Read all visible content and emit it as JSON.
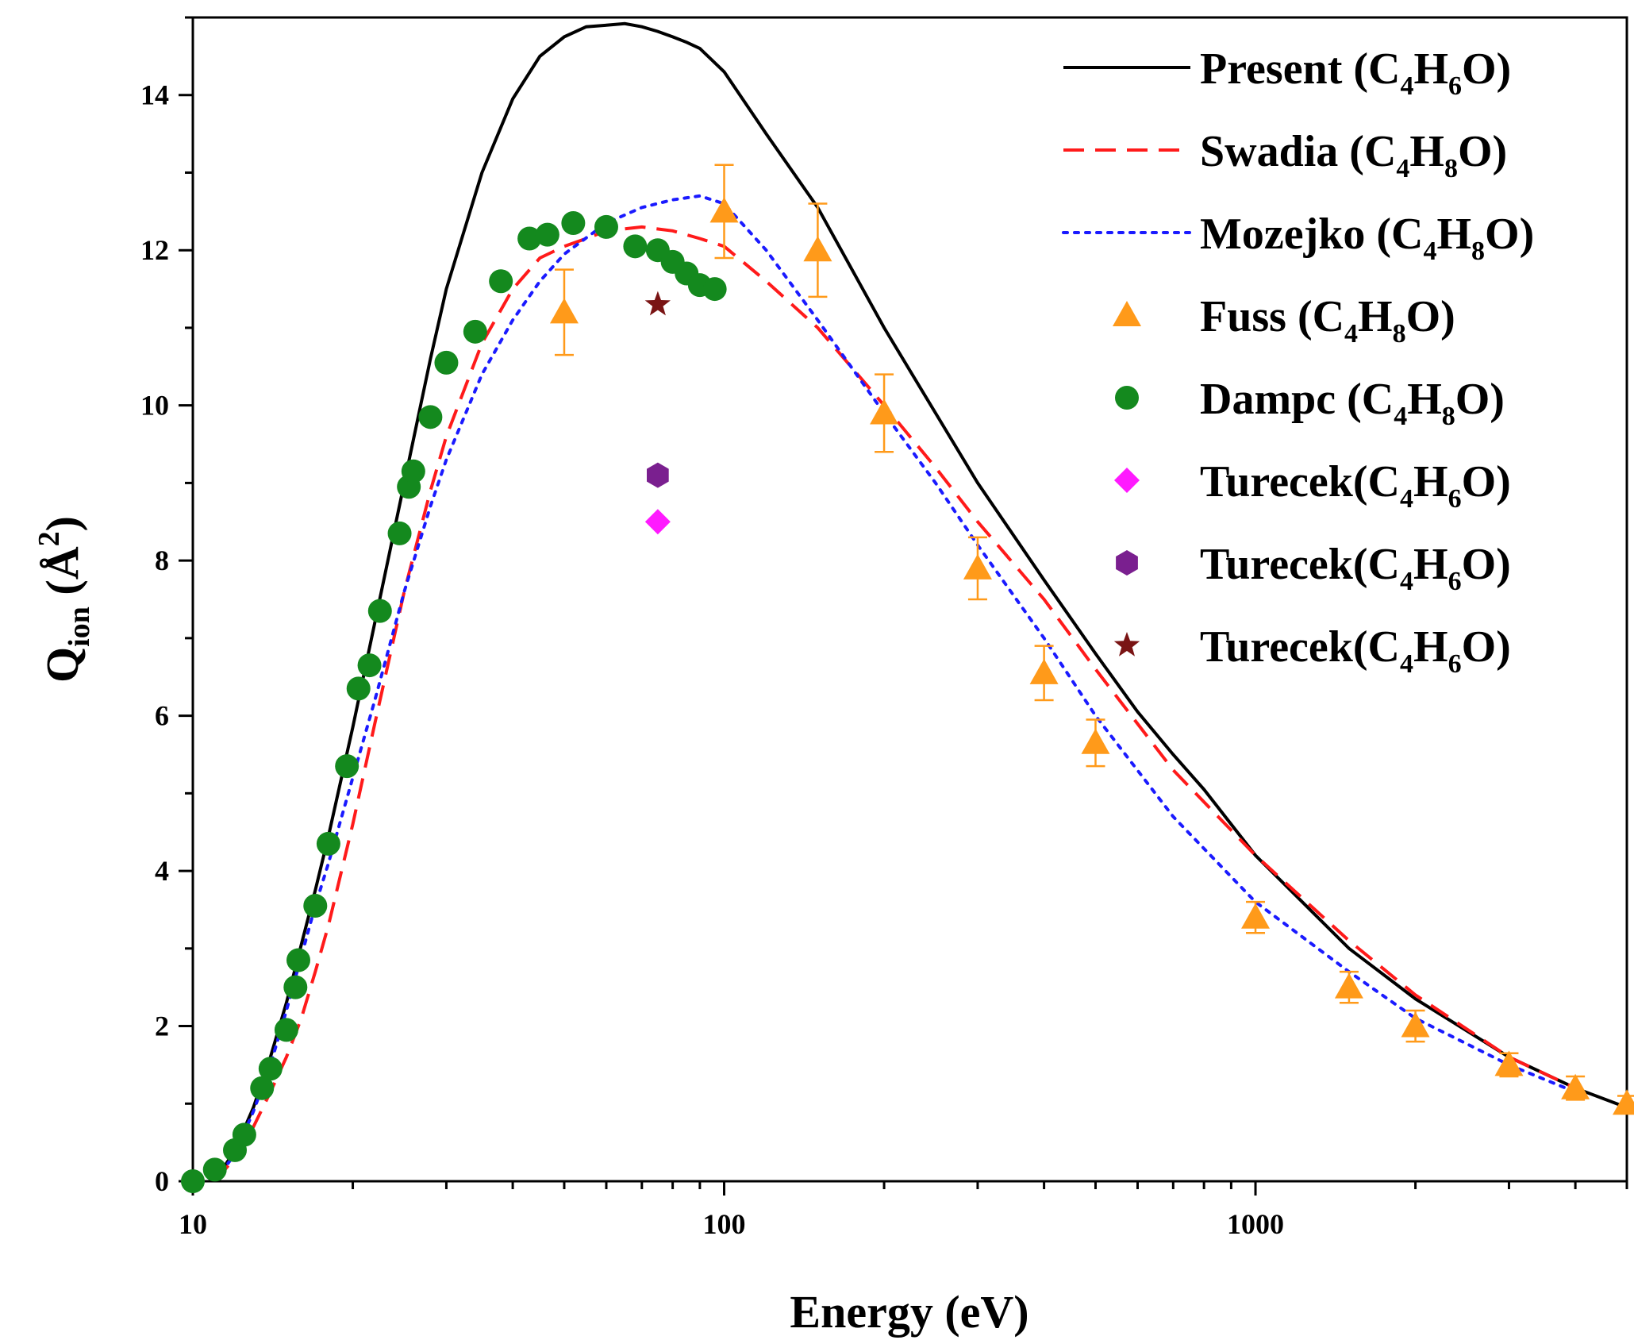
{
  "chart_data": {
    "type": "line",
    "title": "",
    "xlabel": "Energy (eV)",
    "ylabel": {
      "main": "Q",
      "sub": "ion",
      "open": " (",
      "unit": "Å",
      "sup": "2",
      "close": ")"
    },
    "xscale": "log",
    "xlim": [
      10,
      5000
    ],
    "ylim": [
      0,
      15
    ],
    "xticks": [
      {
        "value": 10,
        "label": "10"
      },
      {
        "value": 100,
        "label": "100"
      },
      {
        "value": 1000,
        "label": "1000"
      }
    ],
    "yticks": [
      {
        "value": 0,
        "label": "0"
      },
      {
        "value": 2,
        "label": "2"
      },
      {
        "value": 4,
        "label": "4"
      },
      {
        "value": 6,
        "label": "6"
      },
      {
        "value": 8,
        "label": "8"
      },
      {
        "value": 10,
        "label": "10"
      },
      {
        "value": 12,
        "label": "12"
      },
      {
        "value": 14,
        "label": "14"
      }
    ],
    "legend_position": "top-right",
    "series": [
      {
        "name": "Present",
        "legend": {
          "text": "Present (C",
          "sub1": "4",
          "mid": "H",
          "sub2": "6",
          "end": "O)"
        },
        "kind": "line",
        "style": "solid",
        "color": "#000000",
        "x": [
          11,
          12,
          13,
          14,
          15,
          16,
          17,
          18,
          20,
          22,
          25,
          28,
          30,
          35,
          40,
          45,
          50,
          55,
          60,
          65,
          70,
          75,
          80,
          85,
          90,
          100,
          120,
          150,
          200,
          250,
          300,
          400,
          500,
          600,
          700,
          800,
          1000,
          1500,
          2000,
          3000,
          4000,
          5000
        ],
        "y": [
          0,
          0.4,
          0.95,
          1.6,
          2.3,
          3.05,
          3.75,
          4.45,
          5.85,
          7.2,
          9.0,
          10.6,
          11.5,
          13.0,
          13.95,
          14.5,
          14.75,
          14.88,
          14.9,
          14.92,
          14.88,
          14.82,
          14.75,
          14.68,
          14.6,
          14.3,
          13.5,
          12.55,
          11.0,
          9.9,
          9.0,
          7.75,
          6.8,
          6.05,
          5.5,
          5.05,
          4.2,
          3.0,
          2.35,
          1.6,
          1.2,
          0.95
        ]
      },
      {
        "name": "Swadia",
        "legend": {
          "text": "Swadia (C",
          "sub1": "4",
          "mid": "H",
          "sub2": "8",
          "end": "O)"
        },
        "kind": "line",
        "style": "dashed",
        "color": "#ff1a1a",
        "x": [
          11,
          12,
          13,
          14,
          15,
          16,
          17,
          18,
          20,
          22,
          25,
          28,
          30,
          35,
          40,
          45,
          50,
          55,
          60,
          70,
          80,
          90,
          100,
          120,
          150,
          200,
          250,
          300,
          400,
          500,
          700,
          1000,
          1500,
          2000,
          3000,
          4000
        ],
        "y": [
          0,
          0.3,
          0.7,
          1.15,
          1.6,
          2.1,
          2.7,
          3.3,
          4.6,
          5.9,
          7.6,
          8.9,
          9.6,
          10.8,
          11.5,
          11.9,
          12.05,
          12.15,
          12.25,
          12.3,
          12.25,
          12.15,
          12.05,
          11.6,
          11.0,
          10.0,
          9.2,
          8.5,
          7.5,
          6.6,
          5.3,
          4.2,
          3.1,
          2.4,
          1.6,
          1.2
        ]
      },
      {
        "name": "Mozejko",
        "legend": {
          "text": "Mozejko (C",
          "sub1": "4",
          "mid": "H",
          "sub2": "8",
          "end": "O)"
        },
        "kind": "line",
        "style": "dotted",
        "color": "#1a1aff",
        "x": [
          11,
          12,
          13,
          14,
          15,
          16,
          17,
          18,
          20,
          22,
          25,
          28,
          30,
          35,
          40,
          45,
          50,
          60,
          70,
          80,
          90,
          100,
          120,
          150,
          200,
          250,
          300,
          400,
          500,
          700,
          1000,
          1500,
          2000,
          3000,
          4000
        ],
        "y": [
          0,
          0.35,
          0.9,
          1.5,
          2.2,
          2.9,
          3.55,
          4.1,
          5.2,
          6.2,
          7.6,
          8.7,
          9.3,
          10.4,
          11.1,
          11.6,
          11.95,
          12.35,
          12.55,
          12.65,
          12.7,
          12.6,
          12.0,
          11.1,
          9.9,
          9.0,
          8.2,
          7.0,
          6.0,
          4.7,
          3.6,
          2.7,
          2.1,
          1.5,
          1.15
        ]
      },
      {
        "name": "Fuss",
        "legend": {
          "text": "Fuss (C",
          "sub1": "4",
          "mid": "H",
          "sub2": "8",
          "end": "O)"
        },
        "kind": "marker",
        "marker": "triangle",
        "color": "#ff9a1a",
        "x": [
          50,
          100,
          150,
          200,
          300,
          400,
          500,
          1000,
          1500,
          2000,
          3000,
          4000,
          5000
        ],
        "y": [
          11.2,
          12.5,
          12.0,
          9.9,
          7.9,
          6.55,
          5.65,
          3.4,
          2.5,
          2.0,
          1.5,
          1.2,
          1.0
        ],
        "err": [
          0.55,
          0.6,
          0.6,
          0.5,
          0.4,
          0.35,
          0.3,
          0.2,
          0.2,
          0.2,
          0.15,
          0.15,
          0.1
        ]
      },
      {
        "name": "Dampc",
        "legend": {
          "text": "Dampc (C",
          "sub1": "4",
          "mid": "H",
          "sub2": "8",
          "end": "O)"
        },
        "kind": "marker",
        "marker": "circle",
        "color": "#14891e",
        "x": [
          10,
          11,
          12,
          12.5,
          13.5,
          14,
          15,
          15.6,
          15.8,
          17,
          18,
          19.5,
          20.5,
          21.5,
          22.5,
          24.5,
          25.5,
          26,
          28,
          30,
          34,
          38,
          43,
          46.5,
          52,
          60,
          68,
          75,
          80,
          85,
          90,
          96
        ],
        "y": [
          0,
          0.15,
          0.4,
          0.6,
          1.2,
          1.45,
          1.95,
          2.5,
          2.85,
          3.55,
          4.35,
          5.35,
          6.35,
          6.65,
          7.35,
          8.35,
          8.95,
          9.15,
          9.85,
          10.55,
          10.95,
          11.6,
          12.15,
          12.2,
          12.35,
          12.3,
          12.05,
          12.0,
          11.85,
          11.7,
          11.55,
          11.5
        ]
      },
      {
        "name": "Turecek diamond",
        "legend": {
          "text": "Turecek(C",
          "sub1": "4",
          "mid": "H",
          "sub2": "6",
          "end": "O)"
        },
        "kind": "marker",
        "marker": "diamond",
        "color": "#ff1aff",
        "x": [
          75
        ],
        "y": [
          8.5
        ]
      },
      {
        "name": "Turecek hexagon",
        "legend": {
          "text": "Turecek(C",
          "sub1": "4",
          "mid": "H",
          "sub2": "6",
          "end": "O)"
        },
        "kind": "marker",
        "marker": "hexagon",
        "color": "#7a1f8f",
        "x": [
          75
        ],
        "y": [
          9.1
        ]
      },
      {
        "name": "Turecek star",
        "legend": {
          "text": "Turecek(C",
          "sub1": "4",
          "mid": "H",
          "sub2": "6",
          "end": "O)"
        },
        "kind": "marker",
        "marker": "star",
        "color": "#7a1414",
        "x": [
          75
        ],
        "y": [
          11.3
        ]
      }
    ]
  }
}
